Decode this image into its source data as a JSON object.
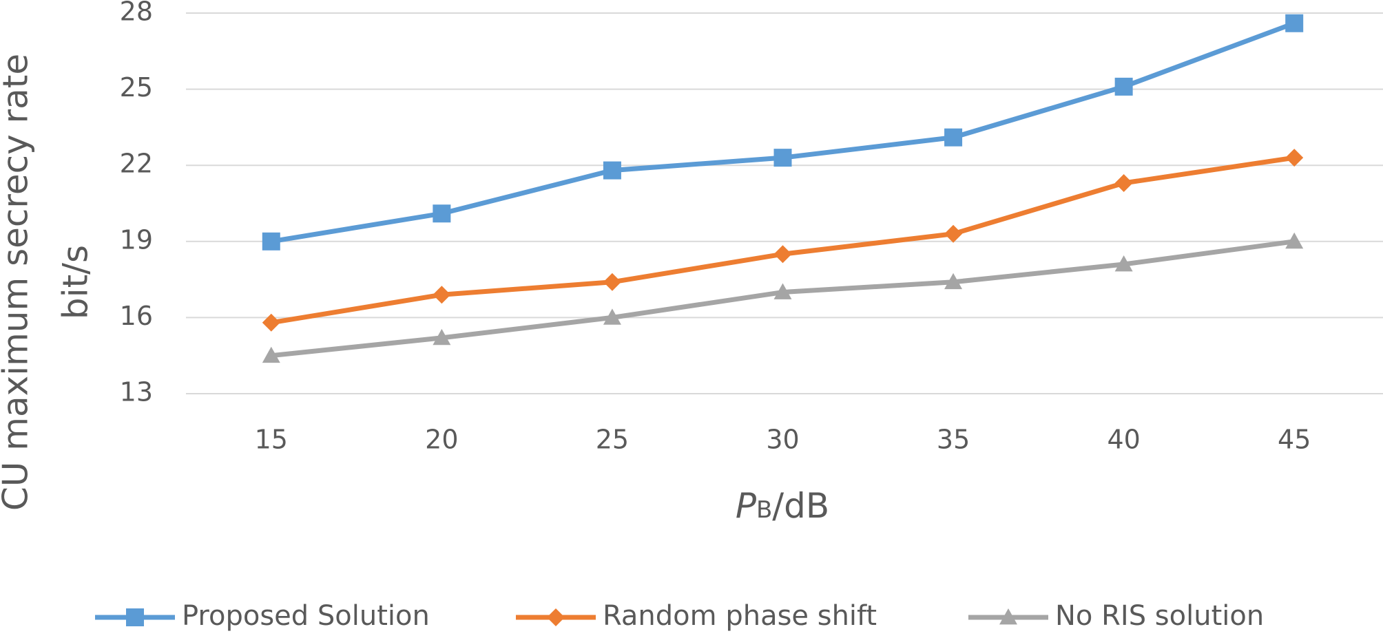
{
  "chart_data": {
    "type": "line",
    "y_label": "CU maximum secrecy rate",
    "y_label_unit": "bit/s",
    "x_label": {
      "symbol": "P",
      "subscript": "B",
      "unit": "/dB"
    },
    "categories": [
      "15",
      "20",
      "25",
      "30",
      "35",
      "40",
      "45"
    ],
    "series": [
      {
        "name": "Proposed Solution",
        "color": "#5b9bd5",
        "marker": "square",
        "values": [
          19.0,
          20.1,
          21.8,
          22.3,
          23.1,
          25.1,
          27.6
        ]
      },
      {
        "name": "Random phase shift",
        "color": "#ed7d31",
        "marker": "diamond",
        "values": [
          15.8,
          16.9,
          17.4,
          18.5,
          19.3,
          21.3,
          22.3
        ]
      },
      {
        "name": "No RIS solution",
        "color": "#a5a5a5",
        "marker": "triangle",
        "values": [
          14.5,
          15.2,
          16.0,
          17.0,
          17.4,
          18.1,
          19.0
        ]
      }
    ],
    "ylim": [
      13,
      28
    ],
    "yticks": [
      13,
      16,
      19,
      22,
      25,
      28
    ],
    "grid": true,
    "legend": "bottom"
  }
}
